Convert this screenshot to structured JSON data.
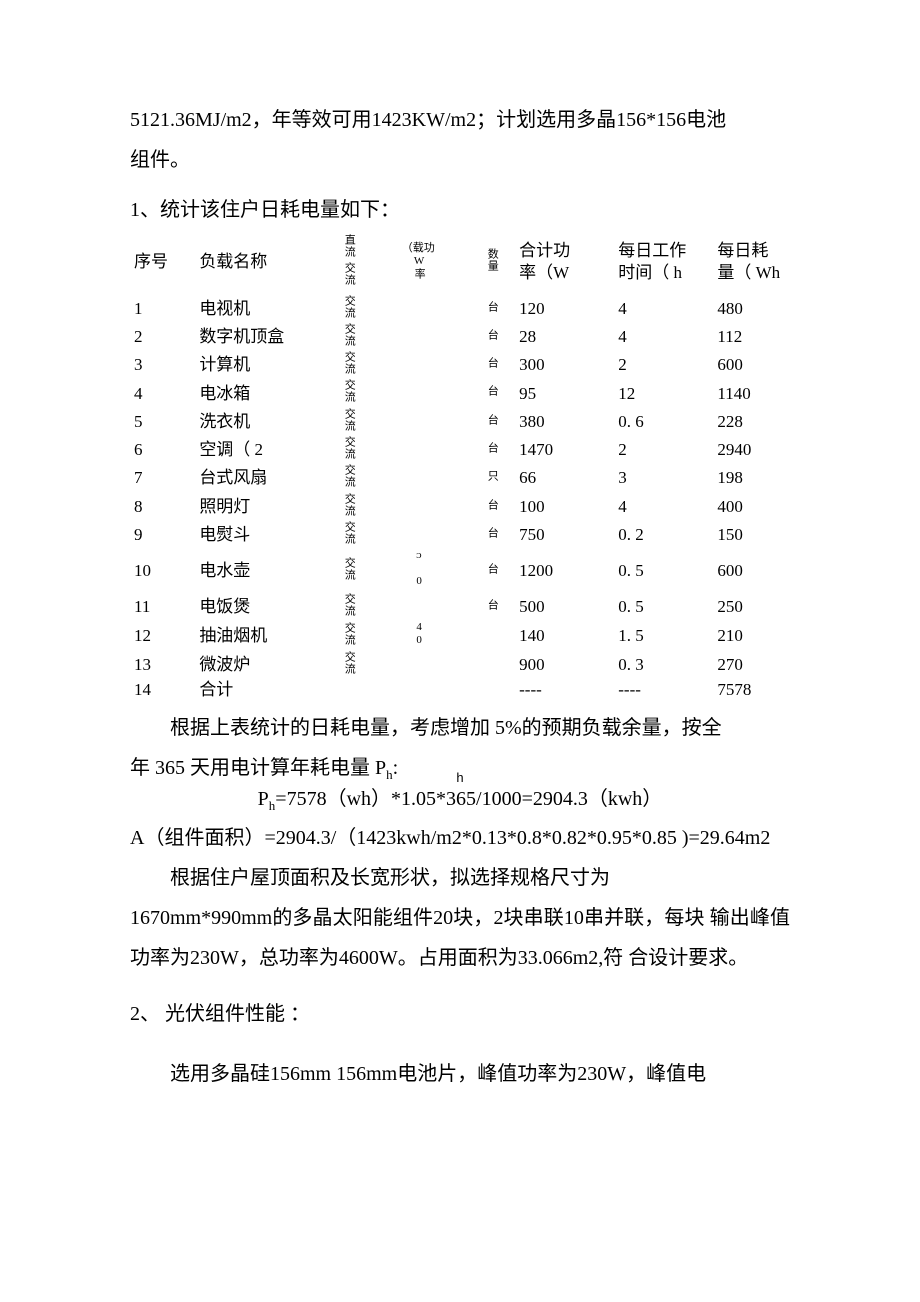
{
  "intro_line1": "5121.36MJ/m2，年等效可用1423KW/m2；计划选用多晶156*156电池",
  "intro_line2": "组件。",
  "section1_title": "1、统计该住户日耗电量如下：",
  "table": {
    "headers": {
      "seq": "序号",
      "name": "负载名称",
      "acdc_top": "直流",
      "acdc_bot": "交流",
      "loadp1": "（载功",
      "loadp2": "W率",
      "qty": "数量",
      "sum1": "合计功",
      "sum2": "率（W",
      "hrs1": "每日工作",
      "hrs2": "时间（ h",
      "wh1": "每日耗",
      "wh2": "量（ Wh"
    },
    "rows": [
      {
        "seq": "1",
        "name": "电视机",
        "acdc": "交流",
        "loadp": "",
        "qty": "台",
        "sum": "120",
        "hrs": "4",
        "wh": "480"
      },
      {
        "seq": "2",
        "name": "数字机顶盒",
        "acdc": "交流",
        "loadp": "",
        "qty": "台",
        "sum": "28",
        "hrs": "4",
        "wh": "112"
      },
      {
        "seq": "3",
        "name": "计算机",
        "acdc": "交流",
        "loadp": "",
        "qty": "台",
        "sum": "300",
        "hrs": "2",
        "wh": "600"
      },
      {
        "seq": "4",
        "name": "电冰箱",
        "acdc": "交流",
        "loadp": "",
        "qty": "台",
        "sum": "95",
        "hrs": "12",
        "wh": "1140"
      },
      {
        "seq": "5",
        "name": "洗衣机",
        "acdc": "交流",
        "loadp": "",
        "qty": "台",
        "sum": "380",
        "hrs": "0. 6",
        "wh": "228"
      },
      {
        "seq": "6",
        "name": "空调（ 2",
        "acdc": "交流",
        "loadp": "",
        "qty": "台",
        "sum": "1470",
        "hrs": "2",
        "wh": "2940"
      },
      {
        "seq": "7",
        "name": "台式风扇",
        "acdc": "交流",
        "loadp": "",
        "qty": "只",
        "sum": "66",
        "hrs": "3",
        "wh": "198"
      },
      {
        "seq": "8",
        "name": "照明灯",
        "acdc": "交流",
        "loadp": "",
        "qty": "台",
        "sum": "100",
        "hrs": "4",
        "wh": "400"
      },
      {
        "seq": "9",
        "name": "电熨斗",
        "acdc": "交流",
        "loadp": "",
        "qty": "台",
        "sum": "750",
        "hrs": "0. 2",
        "wh": "150"
      },
      {
        "seq": "10",
        "name": "电水壶",
        "acdc": "交流",
        "loadp": "ᴐ 0",
        "qty": "台",
        "sum": "1200",
        "hrs": "0. 5",
        "wh": "600"
      },
      {
        "seq": "11",
        "name": "电饭煲",
        "acdc": "交流",
        "loadp": "",
        "qty": "台",
        "sum": "500",
        "hrs": "0. 5",
        "wh": "250"
      },
      {
        "seq": "12",
        "name": "抽油烟机",
        "acdc": "交流",
        "loadp": "40",
        "qty": "",
        "sum": "140",
        "hrs": "1. 5",
        "wh": "210"
      },
      {
        "seq": "13",
        "name": "微波炉",
        "acdc": "交流",
        "loadp": "",
        "qty": "",
        "sum": "900",
        "hrs": "0. 3",
        "wh": "270"
      },
      {
        "seq": "14",
        "name": "合计",
        "acdc": "",
        "loadp": "",
        "qty": "",
        "sum": "----",
        "hrs": "----",
        "wh": "7578"
      }
    ]
  },
  "after_table_p1": "根据上表统计的日耗电量，考虑增加 5%的预期负载余量，按全",
  "after_table_p2a": "年 365 天用电计算年耗电量 P",
  "after_table_p2b": "h",
  "after_table_p2c": ":",
  "stray_h": "h",
  "formula_ph_a": "P",
  "formula_ph_b": "h",
  "formula_ph_c": "=7578（wh）*1.05*365/1000=2904.3（kwh）",
  "formula_area": "A（组件面积）=2904.3/（1423kwh/m2*0.13*0.8*0.82*0.95*0.85 )=29.64m2",
  "roof_p1": "根据住户屋顶面积及长宽形状，拟选择规格尺寸为",
  "roof_p2": "1670mm*990mm的多晶太阳能组件20块，2块串联10串并联，每块 输出峰值功率为230W，总功率为4600W。占用面积为33.066m2,符 合设计要求。",
  "section2_title": "2、 光伏组件性能 ：",
  "section2_body": "选用多晶硅156mm 156mm电池片，峰值功率为230W，峰值电"
}
